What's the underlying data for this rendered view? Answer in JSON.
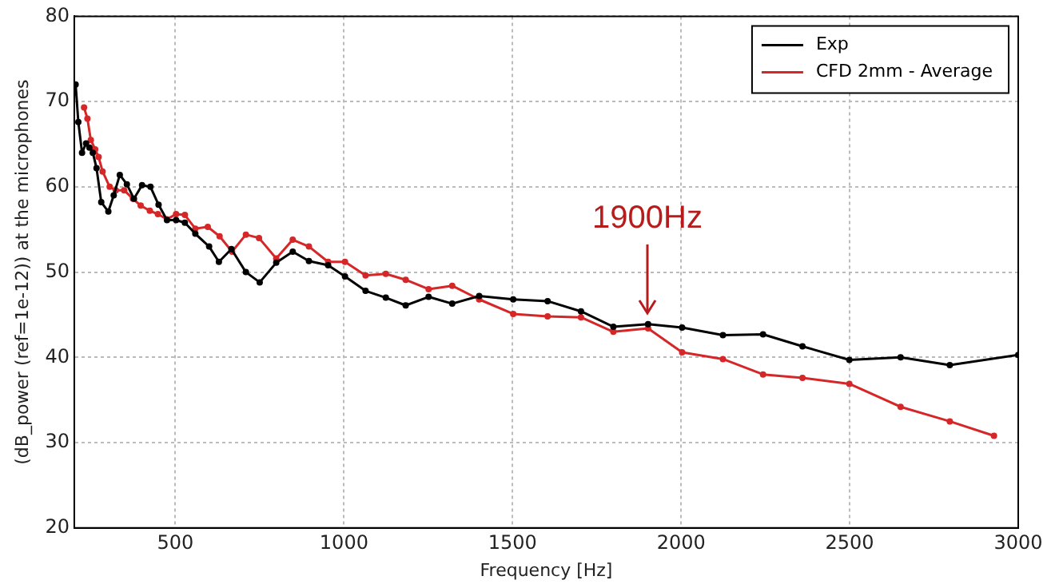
{
  "chart_data": {
    "type": "line",
    "xlabel": "Frequency [Hz]",
    "ylabel": "(dB_power (ref=1e-12)) at the microphones",
    "xlim": [
      200,
      3000
    ],
    "xticks": [
      500,
      1000,
      1500,
      2000,
      2500,
      3000
    ],
    "ylim": [
      20,
      80
    ],
    "yticks": [
      20,
      30,
      40,
      50,
      60,
      70,
      80
    ],
    "grid": true,
    "legend": "top right",
    "marker": "circle",
    "line_style": "solid",
    "annotations": [
      {
        "text": "1900Hz",
        "x": 1900,
        "y": 45
      }
    ],
    "series": [
      {
        "name": "Exp",
        "color": "#000000",
        "x": [
          204,
          212,
          223,
          235,
          245,
          255,
          266,
          280,
          301,
          317,
          335,
          356,
          377,
          401,
          426,
          450,
          475,
          502,
          528,
          559,
          600,
          629,
          666,
          709,
          750,
          799,
          848,
          896,
          953,
          1003,
          1064,
          1124,
          1183,
          1251,
          1321,
          1401,
          1502,
          1604,
          1703,
          1799,
          1902,
          2003,
          2124,
          2243,
          2360,
          2499,
          2651,
          2797,
          3000
        ],
        "values": [
          72.0,
          67.6,
          64.0,
          65.1,
          64.6,
          64.0,
          62.2,
          58.2,
          57.1,
          59.0,
          61.4,
          60.3,
          58.6,
          60.2,
          60.0,
          57.9,
          56.1,
          56.1,
          55.8,
          54.5,
          53.0,
          51.2,
          52.7,
          50.0,
          48.8,
          51.1,
          52.4,
          51.3,
          50.8,
          49.5,
          47.8,
          47.0,
          46.1,
          47.1,
          46.3,
          47.2,
          46.8,
          46.6,
          45.4,
          43.6,
          43.9,
          43.5,
          42.6,
          42.7,
          41.3,
          39.7,
          40.0,
          39.1,
          40.3
        ]
      },
      {
        "name": "CFD 2mm - Average",
        "color": "#d62728",
        "x": [
          229,
          239,
          249,
          262,
          272,
          284,
          305,
          323,
          348,
          374,
          397,
          424,
          448,
          475,
          502,
          528,
          559,
          596,
          631,
          668,
          709,
          748,
          799,
          848,
          896,
          953,
          1003,
          1064,
          1124,
          1183,
          1251,
          1321,
          1401,
          1502,
          1604,
          1703,
          1799,
          1902,
          2003,
          2124,
          2243,
          2360,
          2499,
          2651,
          2797,
          2928
        ],
        "values": [
          69.3,
          68.0,
          65.5,
          64.4,
          63.5,
          61.8,
          60.0,
          59.6,
          59.6,
          58.6,
          57.8,
          57.2,
          56.8,
          56.2,
          56.8,
          56.7,
          55.1,
          55.3,
          54.2,
          52.4,
          54.4,
          54.0,
          51.6,
          53.8,
          53.0,
          51.2,
          51.2,
          49.6,
          49.8,
          49.1,
          48.0,
          48.4,
          46.8,
          45.1,
          44.8,
          44.7,
          43.0,
          43.4,
          40.6,
          39.8,
          38.0,
          37.6,
          36.9,
          34.2,
          32.5,
          30.8
        ]
      }
    ]
  }
}
